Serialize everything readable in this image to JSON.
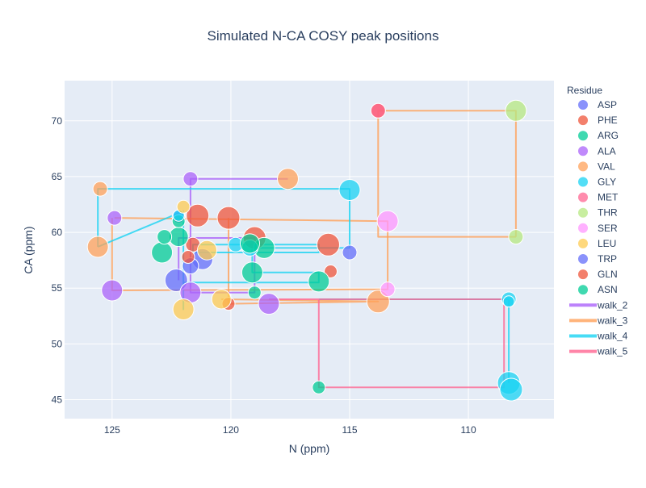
{
  "chart_data": {
    "type": "scatter",
    "title": "Simulated N-CA COSY peak positions",
    "xlabel": "N (ppm)",
    "ylabel": "CA (ppm)",
    "xlim": [
      127,
      106.4
    ],
    "ylim": [
      73.6,
      43.3
    ],
    "x_reversed": true,
    "y_reversed": true,
    "xticks": [
      125,
      120,
      115,
      110
    ],
    "yticks": [
      45,
      50,
      55,
      60,
      65,
      70
    ],
    "grid": true,
    "background": "#e5ecf6",
    "legend_title": "Residue",
    "legend_placement": "right",
    "series": [
      {
        "name": "ASP",
        "color": "#636efa",
        "points": [
          [
            122.3,
            55.7,
            14
          ],
          [
            121.2,
            57.6,
            13
          ],
          [
            115.0,
            58.2,
            9
          ],
          [
            122.2,
            61.4,
            8
          ]
        ]
      },
      {
        "name": "PHE",
        "color": "#ef553b",
        "points": [
          [
            121.4,
            61.5,
            14
          ],
          [
            120.1,
            61.3,
            14
          ],
          [
            119.0,
            59.5,
            14
          ],
          [
            115.9,
            58.9,
            14
          ],
          [
            115.8,
            56.5,
            8
          ],
          [
            113.8,
            70.9,
            9
          ],
          [
            121.6,
            58.9,
            9
          ],
          [
            120.1,
            53.6,
            8
          ]
        ]
      },
      {
        "name": "ARG",
        "color": "#00cc96",
        "points": [
          [
            122.9,
            58.2,
            13
          ],
          [
            122.2,
            59.6,
            12
          ],
          [
            119.1,
            56.4,
            13
          ],
          [
            118.6,
            58.6,
            13
          ],
          [
            116.3,
            55.6,
            13
          ],
          [
            116.3,
            46.1,
            8
          ],
          [
            122.8,
            59.6,
            9
          ],
          [
            122.2,
            61.0,
            8
          ],
          [
            119.0,
            54.6,
            8
          ]
        ]
      },
      {
        "name": "ALA",
        "color": "#ab63fa",
        "points": [
          [
            125.0,
            54.8,
            13
          ],
          [
            121.7,
            54.6,
            13
          ],
          [
            118.4,
            53.6,
            13
          ],
          [
            124.9,
            61.3,
            9
          ],
          [
            121.7,
            64.8,
            9
          ]
        ]
      },
      {
        "name": "VAL",
        "color": "#ffa15a",
        "points": [
          [
            125.6,
            58.7,
            13
          ],
          [
            125.5,
            63.9,
            9
          ],
          [
            117.6,
            64.8,
            13
          ],
          [
            113.8,
            53.8,
            14
          ]
        ]
      },
      {
        "name": "GLY",
        "color": "#19d3f3",
        "points": [
          [
            108.3,
            46.5,
            14
          ],
          [
            108.2,
            45.9,
            14
          ],
          [
            108.3,
            54.0,
            9
          ],
          [
            108.3,
            53.8,
            7
          ],
          [
            115.0,
            63.8,
            13
          ],
          [
            119.8,
            58.9,
            9
          ],
          [
            119.2,
            58.6,
            10
          ],
          [
            122.2,
            61.5,
            7
          ]
        ]
      },
      {
        "name": "MET",
        "color": "#ff6692",
        "points": [
          [
            113.8,
            70.9,
            9
          ]
        ]
      },
      {
        "name": "THR",
        "color": "#b6e880",
        "points": [
          [
            108.0,
            70.9,
            13
          ],
          [
            108.0,
            59.6,
            9
          ]
        ]
      },
      {
        "name": "SER",
        "color": "#ff97ff",
        "points": [
          [
            113.4,
            61.0,
            13
          ],
          [
            113.4,
            54.9,
            9
          ]
        ]
      },
      {
        "name": "LEU",
        "color": "#fecb52",
        "points": [
          [
            122.0,
            53.1,
            13
          ],
          [
            120.4,
            54.0,
            12
          ],
          [
            121.0,
            58.4,
            12
          ],
          [
            122.0,
            62.3,
            8
          ]
        ]
      },
      {
        "name": "TRP",
        "color": "#636efa",
        "points": [
          [
            121.7,
            57.0,
            10
          ]
        ]
      },
      {
        "name": "GLN",
        "color": "#ef553b",
        "points": [
          [
            121.8,
            57.8,
            8
          ]
        ]
      },
      {
        "name": "ASN",
        "color": "#00cc96",
        "points": [
          [
            119.2,
            59.0,
            12
          ]
        ]
      }
    ],
    "walks": [
      {
        "name": "walk_2",
        "color": "#ab63fa",
        "points": [
          [
            117.6,
            64.8
          ],
          [
            121.7,
            64.8
          ],
          [
            121.7,
            54.6
          ],
          [
            119.0,
            54.6
          ],
          [
            119.0,
            59.5
          ],
          [
            122.2,
            59.5
          ],
          [
            122.2,
            55.7
          ]
        ]
      },
      {
        "name": "walk_3",
        "color": "#ffa15a",
        "points": [
          [
            108.0,
            59.6
          ],
          [
            113.8,
            59.6
          ],
          [
            113.8,
            70.9
          ],
          [
            108.0,
            70.9
          ],
          [
            108.0,
            59.6
          ]
        ]
      },
      {
        "name": "walk_3b",
        "color": "#ffa15a",
        "legend": false,
        "points": [
          [
            124.9,
            61.3
          ],
          [
            113.4,
            61.0
          ],
          [
            113.4,
            54.9
          ],
          [
            125.0,
            54.8
          ],
          [
            125.0,
            61.3
          ]
        ]
      },
      {
        "name": "walk_3c",
        "color": "#ffa15a",
        "legend": false,
        "points": [
          [
            120.4,
            54.0
          ],
          [
            113.8,
            53.8
          ],
          [
            120.1,
            53.6
          ],
          [
            120.1,
            61.3
          ]
        ]
      },
      {
        "name": "walk_4",
        "color": "#19d3f3",
        "points": [
          [
            125.6,
            58.7
          ],
          [
            122.0,
            61.9
          ],
          [
            122.0,
            53.1
          ],
          [
            122.0,
            55.5
          ],
          [
            116.3,
            55.5
          ],
          [
            116.3,
            56.4
          ],
          [
            119.1,
            56.4
          ],
          [
            119.1,
            58.6
          ],
          [
            115.0,
            58.6
          ],
          [
            115.0,
            63.9
          ],
          [
            125.6,
            63.9
          ],
          [
            125.6,
            58.7
          ]
        ]
      },
      {
        "name": "walk_4b",
        "color": "#19d3f3",
        "legend": false,
        "points": [
          [
            121.6,
            58.2
          ],
          [
            121.6,
            58.9
          ],
          [
            116.3,
            58.9
          ],
          [
            116.3,
            58.2
          ],
          [
            121.6,
            58.2
          ]
        ]
      },
      {
        "name": "walk_4c",
        "color": "#19d3f3",
        "legend": false,
        "points": [
          [
            108.3,
            46.5
          ],
          [
            108.3,
            54.0
          ],
          [
            116.3,
            54.0
          ]
        ]
      },
      {
        "name": "walk_5",
        "color": "#ff6692",
        "points": [
          [
            116.3,
            54.0
          ],
          [
            116.3,
            46.1
          ],
          [
            108.5,
            46.1
          ],
          [
            108.5,
            54.0
          ],
          [
            118.4,
            54.0
          ]
        ]
      }
    ],
    "legend": [
      {
        "label": "ASP",
        "kind": "marker",
        "color": "#636efa"
      },
      {
        "label": "PHE",
        "kind": "marker",
        "color": "#ef553b"
      },
      {
        "label": "ARG",
        "kind": "marker",
        "color": "#00cc96"
      },
      {
        "label": "ALA",
        "kind": "marker",
        "color": "#ab63fa"
      },
      {
        "label": "VAL",
        "kind": "marker",
        "color": "#ffa15a"
      },
      {
        "label": "GLY",
        "kind": "marker",
        "color": "#19d3f3"
      },
      {
        "label": "MET",
        "kind": "marker",
        "color": "#ff6692"
      },
      {
        "label": "THR",
        "kind": "marker",
        "color": "#b6e880"
      },
      {
        "label": "SER",
        "kind": "marker",
        "color": "#ff97ff"
      },
      {
        "label": "LEU",
        "kind": "marker",
        "color": "#fecb52"
      },
      {
        "label": "TRP",
        "kind": "marker",
        "color": "#636efa"
      },
      {
        "label": "GLN",
        "kind": "marker",
        "color": "#ef553b"
      },
      {
        "label": "ASN",
        "kind": "marker",
        "color": "#00cc96"
      },
      {
        "label": "walk_2",
        "kind": "line",
        "color": "#ab63fa"
      },
      {
        "label": "walk_3",
        "kind": "line",
        "color": "#ffa15a"
      },
      {
        "label": "walk_4",
        "kind": "line",
        "color": "#19d3f3"
      },
      {
        "label": "walk_5",
        "kind": "line",
        "color": "#ff6692"
      }
    ]
  }
}
